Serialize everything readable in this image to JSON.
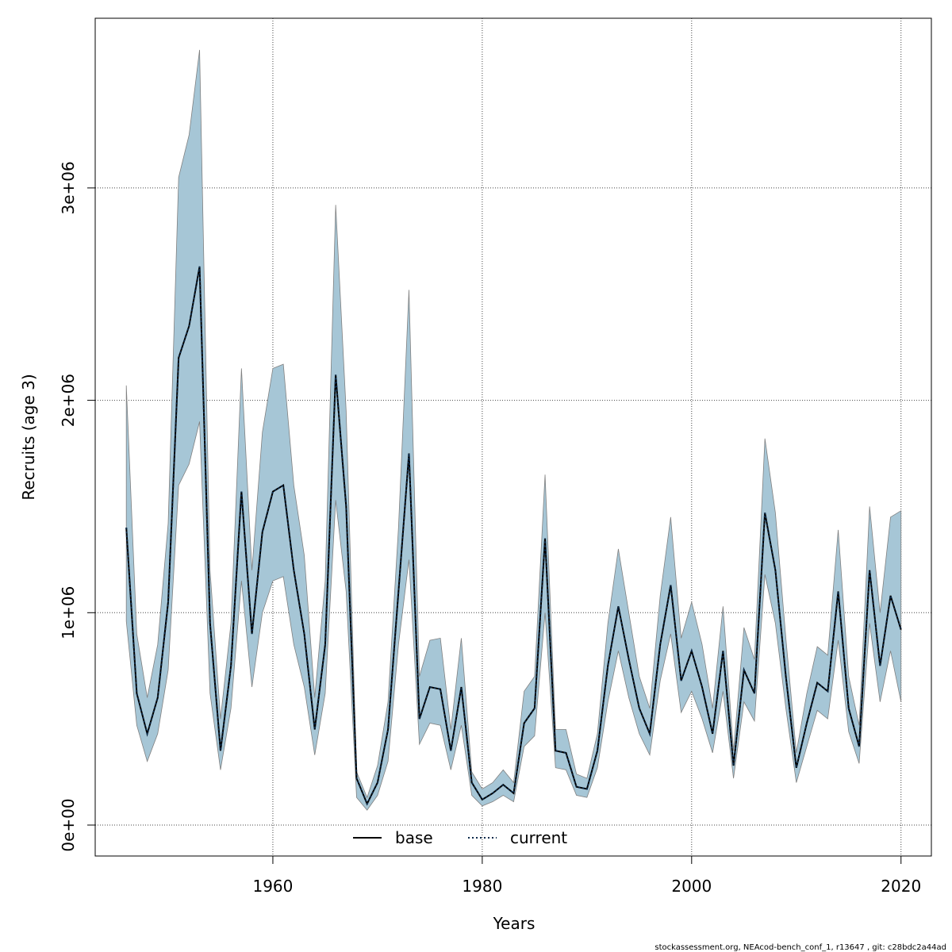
{
  "chart_data": {
    "type": "line",
    "xlabel": "Years",
    "ylabel": "Recruits (age 3)",
    "footnote": "stockassessment.org, NEAcod-bench_conf_1, r13647 , git: c28bdc2a44ad",
    "x": [
      1946,
      1947,
      1948,
      1949,
      1950,
      1951,
      1952,
      1953,
      1954,
      1955,
      1956,
      1957,
      1958,
      1959,
      1960,
      1961,
      1962,
      1963,
      1964,
      1965,
      1966,
      1967,
      1968,
      1969,
      1970,
      1971,
      1972,
      1973,
      1974,
      1975,
      1976,
      1977,
      1978,
      1979,
      1980,
      1981,
      1982,
      1983,
      1984,
      1985,
      1986,
      1987,
      1988,
      1989,
      1990,
      1991,
      1992,
      1993,
      1994,
      1995,
      1996,
      1997,
      1998,
      1999,
      2000,
      2001,
      2002,
      2003,
      2004,
      2005,
      2006,
      2007,
      2008,
      2009,
      2010,
      2011,
      2012,
      2013,
      2014,
      2015,
      2016,
      2017,
      2018,
      2019,
      2020
    ],
    "band": {
      "color": "#a6c6d6",
      "upper": [
        2070000,
        900000,
        600000,
        850000,
        1420000,
        3050000,
        3250000,
        3650000,
        1200000,
        500000,
        950000,
        2150000,
        1200000,
        1850000,
        2150000,
        2170000,
        1600000,
        1270000,
        600000,
        1150000,
        2920000,
        1950000,
        250000,
        130000,
        280000,
        580000,
        1400000,
        2520000,
        700000,
        870000,
        880000,
        450000,
        880000,
        250000,
        170000,
        200000,
        260000,
        200000,
        630000,
        700000,
        1650000,
        450000,
        450000,
        240000,
        220000,
        430000,
        950000,
        1300000,
        1000000,
        700000,
        550000,
        1080000,
        1450000,
        880000,
        1050000,
        850000,
        550000,
        1030000,
        350000,
        930000,
        780000,
        1820000,
        1470000,
        880000,
        340000,
        620000,
        840000,
        800000,
        1390000,
        700000,
        470000,
        1500000,
        1000000,
        1450000,
        1480000
      ],
      "lower": [
        960000,
        470000,
        300000,
        430000,
        730000,
        1600000,
        1700000,
        1900000,
        620000,
        260000,
        550000,
        1150000,
        650000,
        1000000,
        1150000,
        1170000,
        850000,
        650000,
        330000,
        620000,
        1530000,
        1100000,
        130000,
        70000,
        140000,
        300000,
        850000,
        1250000,
        380000,
        480000,
        470000,
        260000,
        470000,
        140000,
        90000,
        110000,
        140000,
        110000,
        370000,
        420000,
        1000000,
        270000,
        260000,
        140000,
        130000,
        270000,
        580000,
        820000,
        600000,
        430000,
        330000,
        680000,
        900000,
        530000,
        630000,
        500000,
        340000,
        630000,
        220000,
        580000,
        490000,
        1180000,
        950000,
        550000,
        200000,
        370000,
        540000,
        500000,
        870000,
        440000,
        290000,
        950000,
        580000,
        820000,
        580000
      ]
    },
    "series": [
      {
        "name": "base",
        "color": "#000000",
        "dash": "solid",
        "values": [
          1400000,
          620000,
          430000,
          600000,
          1050000,
          2200000,
          2350000,
          2630000,
          950000,
          350000,
          750000,
          1570000,
          900000,
          1380000,
          1570000,
          1600000,
          1200000,
          900000,
          450000,
          850000,
          2120000,
          1500000,
          220000,
          100000,
          200000,
          450000,
          1100000,
          1750000,
          500000,
          650000,
          640000,
          350000,
          650000,
          200000,
          120000,
          150000,
          190000,
          150000,
          480000,
          550000,
          1350000,
          350000,
          340000,
          180000,
          170000,
          350000,
          750000,
          1030000,
          780000,
          550000,
          430000,
          850000,
          1130000,
          680000,
          820000,
          650000,
          430000,
          820000,
          280000,
          730000,
          620000,
          1470000,
          1200000,
          700000,
          270000,
          480000,
          670000,
          630000,
          1100000,
          550000,
          370000,
          1200000,
          750000,
          1080000,
          920000
        ]
      },
      {
        "name": "current",
        "color": "#0b2a4a",
        "dash": "dotted",
        "values": [
          1400000,
          620000,
          430000,
          600000,
          1050000,
          2200000,
          2350000,
          2630000,
          950000,
          350000,
          750000,
          1570000,
          900000,
          1380000,
          1570000,
          1600000,
          1200000,
          900000,
          450000,
          850000,
          2120000,
          1500000,
          220000,
          100000,
          200000,
          450000,
          1100000,
          1750000,
          500000,
          650000,
          640000,
          350000,
          650000,
          200000,
          120000,
          150000,
          190000,
          150000,
          480000,
          550000,
          1350000,
          350000,
          340000,
          180000,
          170000,
          350000,
          750000,
          1030000,
          780000,
          550000,
          430000,
          850000,
          1130000,
          680000,
          820000,
          650000,
          430000,
          820000,
          280000,
          730000,
          620000,
          1470000,
          1200000,
          700000,
          270000,
          480000,
          670000,
          630000,
          1100000,
          550000,
          370000,
          1200000,
          750000,
          1080000,
          920000
        ]
      }
    ],
    "xlim": [
      1943.03,
      2022.9
    ],
    "ylim": [
      -145700,
      3799000
    ],
    "xticks": [
      1960,
      1980,
      2000,
      2020
    ],
    "yticks": [
      {
        "value": 0,
        "label": "0e+00"
      },
      {
        "value": 1000000,
        "label": "1e+06"
      },
      {
        "value": 2000000,
        "label": "2e+06"
      },
      {
        "value": 3000000,
        "label": "3e+06"
      }
    ],
    "grid": true,
    "legend": "bottom"
  }
}
